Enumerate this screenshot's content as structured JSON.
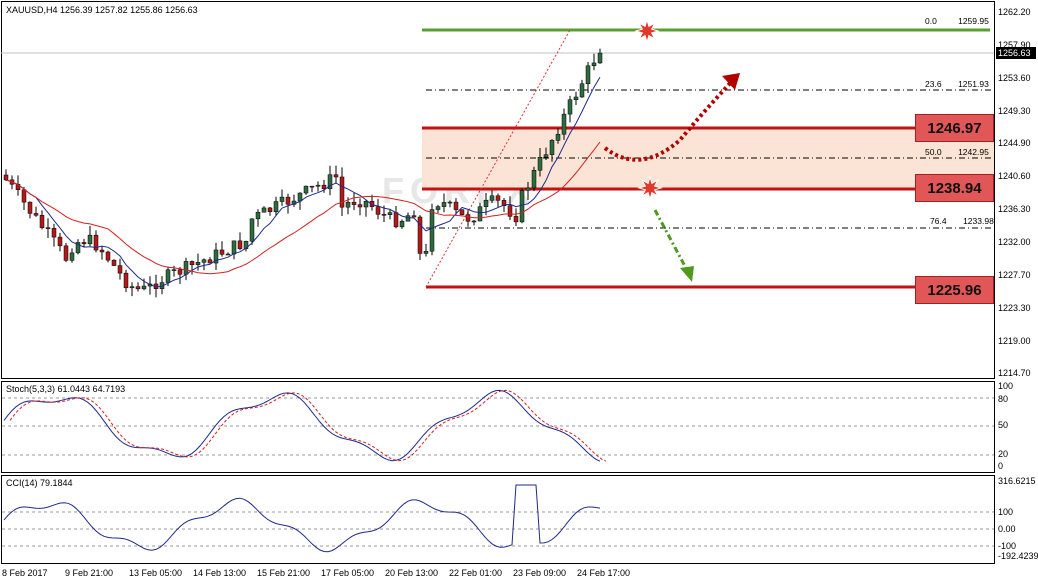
{
  "symbol_info": "XAUUSD,H4  1256.39 1257.82 1255.86 1256.63",
  "current_price": "1256.63",
  "price_axis": [
    "1262.20",
    "1257.90",
    "1253.60",
    "1249.30",
    "1244.90",
    "1240.60",
    "1236.30",
    "1232.00",
    "1227.70",
    "1223.30",
    "1219.00",
    "1214.70"
  ],
  "levels": {
    "resistance": "1246.97",
    "pivot": "1238.94",
    "support": "1225.96"
  },
  "fib": {
    "f0": "0.0",
    "f0_price": "1259.95",
    "f236": "23.6",
    "f236_price": "1251.93",
    "f50": "50.0",
    "f50_price": "1242.95",
    "f764": "76.4",
    "f764_price": "1233.98"
  },
  "watermark": "FOREX",
  "stoch": {
    "label": "Stoch(5,3,3) 61.0443 64.7193",
    "axis": [
      "100",
      "80",
      "50",
      "20",
      "0"
    ]
  },
  "cci": {
    "label": "CCI(14) 79.1844",
    "axis": [
      "316.6215",
      "100",
      "0.00",
      "-100",
      "-192.4239"
    ]
  },
  "time_axis": [
    "8 Feb 2017",
    "9 Feb 21:00",
    "13 Feb 05:00",
    "14 Feb 13:00",
    "15 Feb 21:00",
    "17 Feb 05:00",
    "20 Feb 13:00",
    "22 Feb 01:00",
    "23 Feb 09:00",
    "24 Feb 17:00"
  ],
  "colors": {
    "up_candle": "#2e6b3f",
    "down_candle": "#b01a1a",
    "ma_fast": "#1e2a8c",
    "ma_slow": "#d42020",
    "support_line": "#c41212",
    "fib0_line": "#57a030",
    "zone": "#fbe4d5",
    "bull_arrow": "#b30000",
    "bear_arrow": "#4f9a1e"
  }
}
